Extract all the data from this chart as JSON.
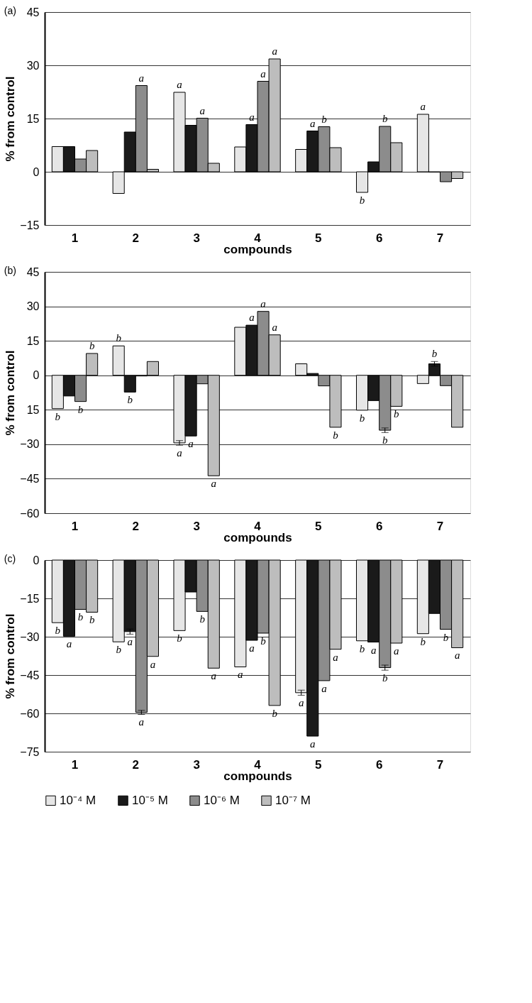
{
  "chart_data": [
    {
      "type": "bar",
      "title": "(a)",
      "xlabel": "compounds",
      "ylabel": "% from control",
      "categories": [
        "1",
        "2",
        "3",
        "4",
        "5",
        "6",
        "7"
      ],
      "series": [
        {
          "color": "#e6e6e6",
          "values": [
            7.1,
            -6.1,
            22.4,
            7.0,
            6.3,
            -5.8,
            16.2
          ],
          "value_labels": [
            null,
            null,
            "a",
            null,
            null,
            "b",
            "a"
          ]
        },
        {
          "color": "#1a1a1a",
          "values": [
            7.1,
            11.2,
            13.1,
            13.3,
            11.5,
            2.8,
            -0.1
          ],
          "value_labels": [
            null,
            null,
            null,
            "a",
            "a",
            null,
            null
          ]
        },
        {
          "color": "#8c8c8c",
          "values": [
            3.6,
            24.3,
            15.1,
            25.5,
            12.7,
            12.8,
            -2.8
          ],
          "value_labels": [
            null,
            "a",
            "a",
            "a",
            "b",
            "b",
            null
          ]
        },
        {
          "color": "#bdbdbd",
          "values": [
            6.0,
            0.7,
            2.4,
            31.8,
            6.8,
            8.2,
            -1.9
          ],
          "value_labels": [
            null,
            null,
            null,
            "a",
            null,
            null,
            null
          ]
        }
      ],
      "ylim": [
        -15,
        45
      ],
      "yticks": [
        -15,
        0,
        15,
        30,
        45
      ],
      "grid": "y"
    },
    {
      "type": "bar",
      "title": "(b)",
      "xlabel": "compounds",
      "ylabel": "% from control",
      "categories": [
        "1",
        "2",
        "3",
        "4",
        "5",
        "6",
        "7"
      ],
      "series": [
        {
          "color": "#e6e6e6",
          "values": [
            -14.5,
            12.8,
            -29.4,
            20.9,
            5.0,
            -15.2,
            -3.6
          ],
          "errors": [
            null,
            null,
            1,
            null,
            null,
            null,
            null
          ],
          "value_labels": [
            "b",
            "b",
            "a",
            null,
            null,
            "b",
            null
          ]
        },
        {
          "color": "#1a1a1a",
          "values": [
            -9.0,
            -7.3,
            -26.4,
            21.8,
            0.8,
            -11.0,
            5.0
          ],
          "errors": [
            null,
            null,
            null,
            null,
            null,
            null,
            1
          ],
          "value_labels": [
            null,
            "b",
            "a",
            "a",
            null,
            null,
            "b"
          ]
        },
        {
          "color": "#8c8c8c",
          "values": [
            -11.4,
            -0.3,
            -3.7,
            27.8,
            -4.6,
            -23.9,
            -4.5
          ],
          "errors": [
            null,
            null,
            null,
            null,
            null,
            1,
            null
          ],
          "value_labels": [
            "b",
            null,
            null,
            "a",
            null,
            "b",
            null
          ]
        },
        {
          "color": "#bdbdbd",
          "values": [
            9.5,
            6.0,
            -43.7,
            17.6,
            -22.6,
            -13.5,
            -22.6
          ],
          "value_labels": [
            "b",
            null,
            "a",
            "a",
            "b",
            "b",
            null
          ]
        }
      ],
      "ylim": [
        -60,
        45
      ],
      "yticks": [
        -60,
        -45,
        -30,
        {
          "value": -15,
          "label": "15"
        },
        0,
        15,
        30,
        45
      ],
      "grid": "y"
    },
    {
      "type": "bar",
      "title": "(c)",
      "xlabel": "compounds",
      "ylabel": "% from control",
      "categories": [
        "1",
        "2",
        "3",
        "4",
        "5",
        "6",
        "7"
      ],
      "legend": "bottom",
      "series": [
        {
          "name": "10⁻⁴ M",
          "color": "#e6e6e6",
          "values": [
            -24.5,
            -32.0,
            -27.6,
            -41.8,
            -51.9,
            -31.6,
            -28.8
          ],
          "errors": [
            null,
            null,
            null,
            null,
            1,
            null,
            null
          ],
          "value_labels": [
            "b",
            "b",
            "b",
            "a",
            "a",
            "b",
            "b"
          ]
        },
        {
          "name": "10⁻⁵ M",
          "color": "#1a1a1a",
          "values": [
            -29.8,
            -28.0,
            -12.5,
            -31.4,
            -68.9,
            -32.1,
            -20.9
          ],
          "errors": [
            null,
            1,
            null,
            null,
            null,
            null,
            null
          ],
          "value_labels": [
            "a",
            "a",
            null,
            "a",
            "a",
            "a",
            null
          ]
        },
        {
          "name": "10⁻⁶ M",
          "color": "#8c8c8c",
          "values": [
            -19.3,
            -59.6,
            -20.1,
            -28.6,
            -47.2,
            -42.1,
            -27.1
          ],
          "errors": [
            null,
            0.8,
            null,
            null,
            null,
            1,
            null
          ],
          "value_labels": [
            "b",
            "a",
            "b",
            "b",
            "a",
            "b",
            "b"
          ]
        },
        {
          "name": "10⁻⁷ M",
          "color": "#bdbdbd",
          "values": [
            -20.4,
            -37.7,
            -42.3,
            -56.9,
            -34.9,
            -32.5,
            -34.3
          ],
          "value_labels": [
            "b",
            "a",
            "a",
            "b",
            "a",
            "a",
            "a"
          ]
        }
      ],
      "ylim": [
        -75,
        0
      ],
      "yticks": [
        -75,
        -60,
        -45,
        -30,
        -15,
        0
      ],
      "grid": "y"
    }
  ]
}
